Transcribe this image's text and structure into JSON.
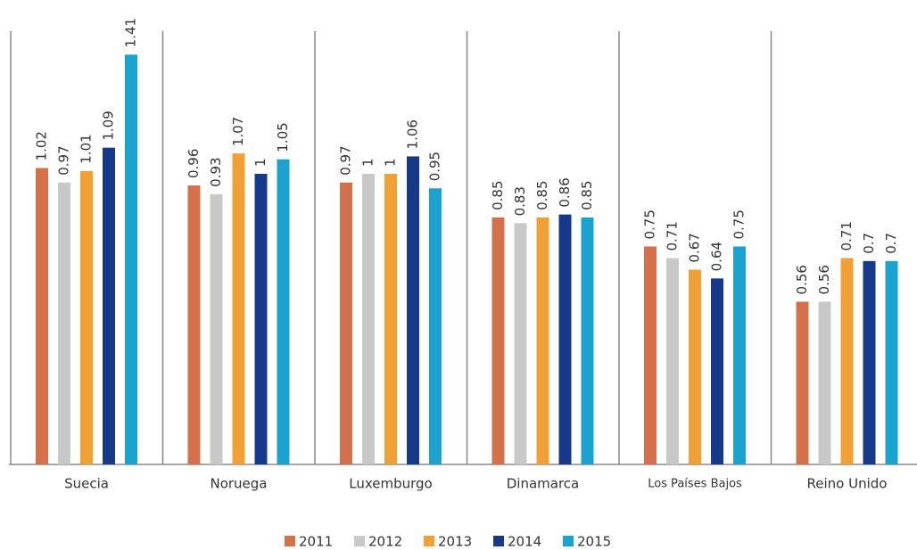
{
  "chart_data": {
    "type": "bar",
    "categories": [
      "Suecia",
      "Noruega",
      "Luxemburgo",
      "Dinamarca",
      "Los Países Bajos",
      "Reino Unido"
    ],
    "series": [
      {
        "name": "2011",
        "color": "#d4714a",
        "values": [
          1.02,
          0.96,
          0.97,
          0.85,
          0.75,
          0.56
        ]
      },
      {
        "name": "2012",
        "color": "#c8c8c8",
        "values": [
          0.97,
          0.93,
          1,
          0.83,
          0.71,
          0.56
        ]
      },
      {
        "name": "2013",
        "color": "#f0a035",
        "values": [
          1.01,
          1.07,
          1,
          0.85,
          0.67,
          0.71
        ]
      },
      {
        "name": "2014",
        "color": "#17398a",
        "values": [
          1.09,
          1,
          1.06,
          0.86,
          0.64,
          0.7
        ]
      },
      {
        "name": "2015",
        "color": "#1aa3cf",
        "values": [
          1.41,
          1.05,
          0.95,
          0.85,
          0.75,
          0.7
        ]
      }
    ],
    "ylim": [
      0,
      1.5
    ],
    "legend": "bottom"
  }
}
